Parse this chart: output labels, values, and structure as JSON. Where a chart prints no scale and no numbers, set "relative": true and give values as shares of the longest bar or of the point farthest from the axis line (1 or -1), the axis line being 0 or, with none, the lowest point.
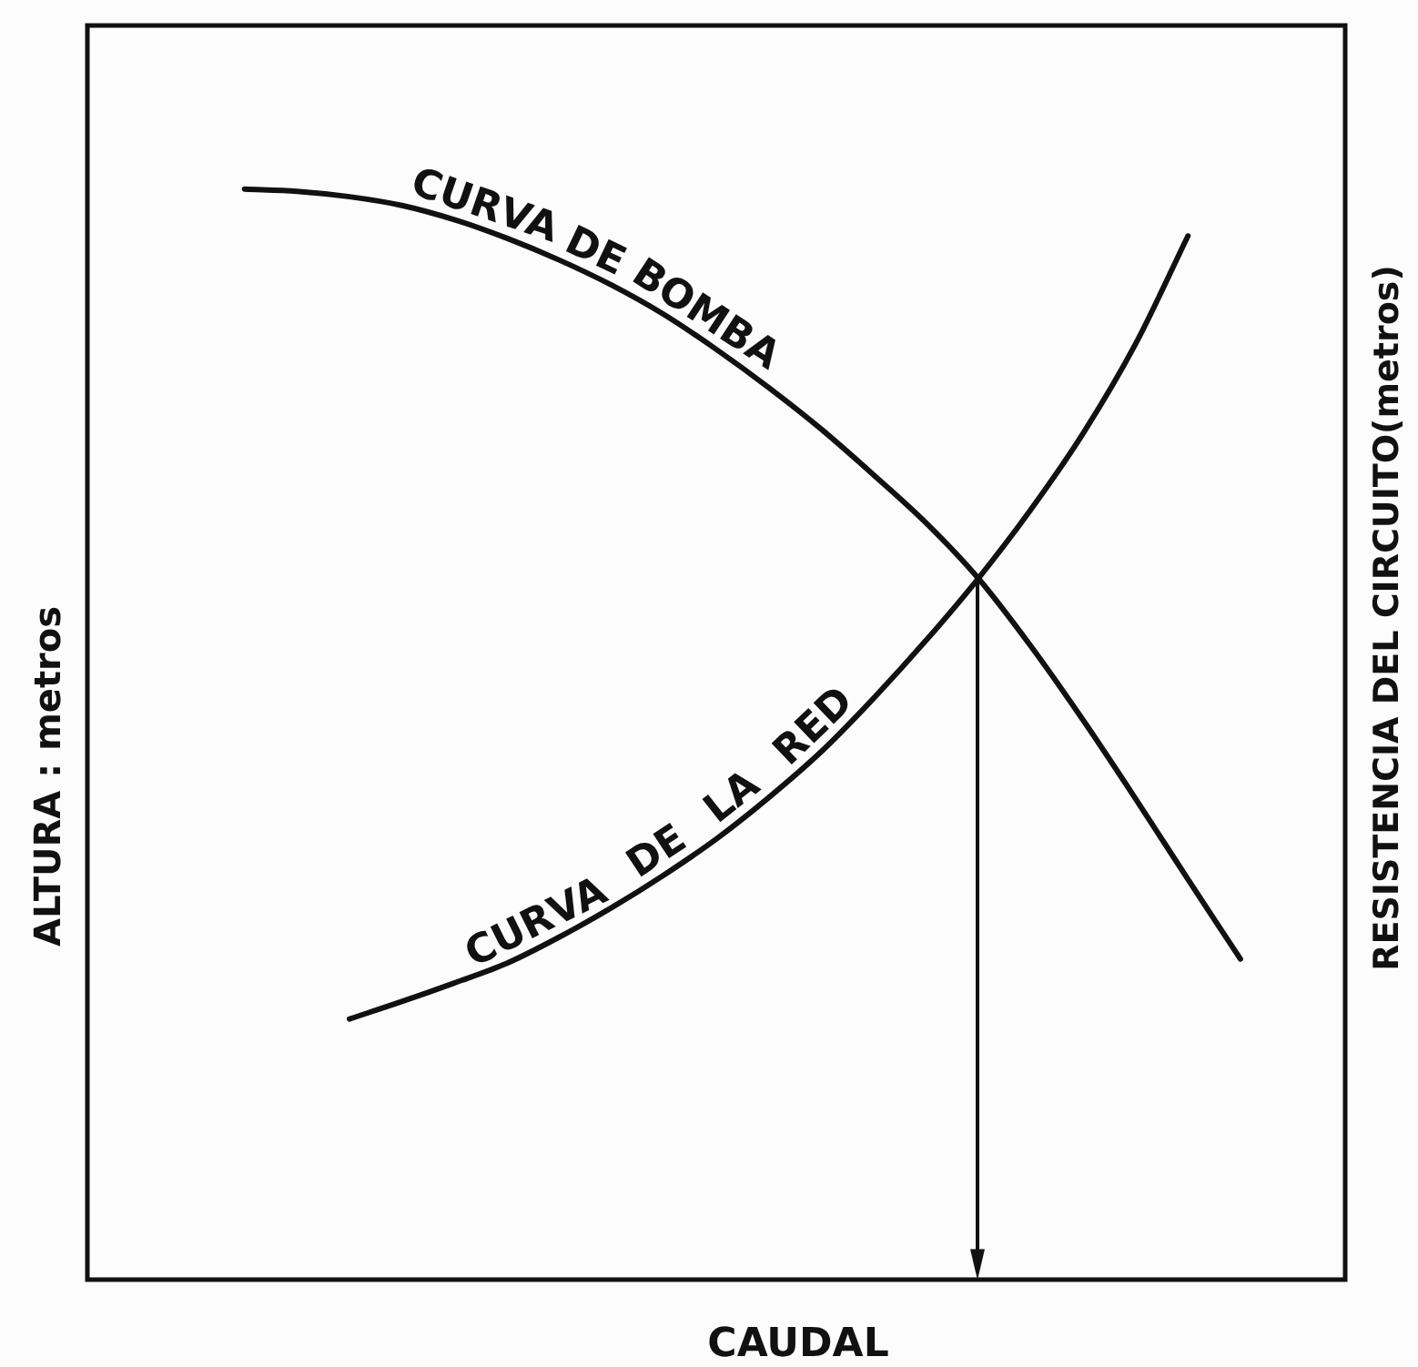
{
  "chart_data": {
    "type": "line",
    "xlabel": "CAUDAL",
    "ylabel": "ALTURA : metros",
    "y2label": "RESISTENCIA DEL CIRCUITO(metros)",
    "relative": true,
    "marker": "none",
    "line_style": "solid",
    "tick_labels": false,
    "categories": [
      null,
      null,
      null,
      null,
      null,
      null,
      null,
      null,
      null,
      null,
      null,
      null,
      null,
      null,
      null,
      null,
      null,
      null,
      null,
      null,
      null,
      null,
      null,
      null,
      null
    ],
    "series": [
      {
        "name": "CURVA DE BOMBA",
        "color": "#111111",
        "values": [
          null,
          null,
          null,
          1.0,
          0.998,
          0.993,
          0.985,
          0.972,
          0.955,
          0.935,
          0.912,
          0.885,
          0.853,
          0.818,
          0.78,
          0.738,
          0.694,
          0.643,
          0.581,
          0.513,
          0.441,
          0.367,
          0.294,
          null,
          null
        ]
      },
      {
        "name": "CURVA DE LA RED",
        "color": "#111111",
        "values": [
          null,
          null,
          null,
          null,
          null,
          0.239,
          0.255,
          0.272,
          0.29,
          0.314,
          0.341,
          0.371,
          0.404,
          0.442,
          0.484,
          0.533,
          0.586,
          0.643,
          0.706,
          0.776,
          0.858,
          0.957,
          null,
          null,
          null
        ]
      }
    ]
  }
}
